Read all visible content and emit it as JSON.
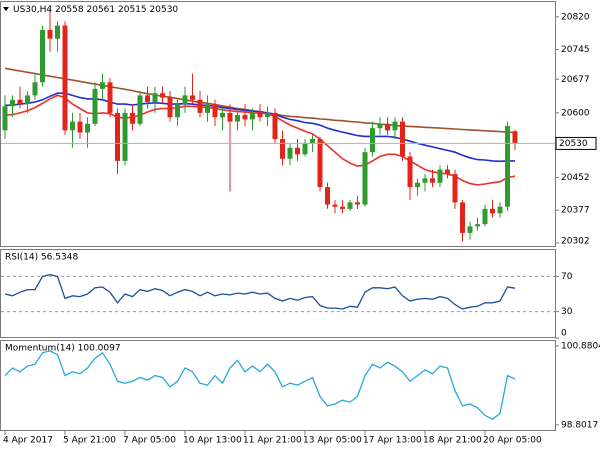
{
  "chart_data": [
    {
      "type": "candlestick",
      "title": "US30,H4",
      "categories": [
        "4 Apr 2017",
        null,
        null,
        null,
        null,
        null,
        null,
        null,
        "5 Apr 21:00",
        null,
        null,
        null,
        null,
        null,
        null,
        null,
        "7 Apr 05:00",
        null,
        null,
        null,
        null,
        null,
        null,
        null,
        "10 Apr 13:00",
        null,
        null,
        null,
        null,
        null,
        null,
        null,
        "11 Apr 21:00",
        null,
        null,
        null,
        null,
        null,
        null,
        null,
        "13 Apr 05:00",
        null,
        null,
        null,
        null,
        null,
        null,
        null,
        "17 Apr 13:00",
        null,
        null,
        null,
        null,
        null,
        null,
        null,
        "18 Apr 21:00",
        null,
        null,
        null,
        null,
        null,
        null,
        null,
        "20 Apr 05:00",
        null,
        null,
        null,
        null
      ],
      "open": [
        20560,
        20615,
        20630,
        20620,
        20640,
        20670,
        20790,
        20770,
        20800,
        20560,
        20580,
        20555,
        20575,
        20655,
        20670,
        20600,
        20490,
        20600,
        20575,
        20640,
        20625,
        20645,
        20635,
        20590,
        20620,
        20640,
        20630,
        20600,
        20620,
        20590,
        20600,
        20580,
        20595,
        20585,
        20600,
        20590,
        20600,
        20540,
        20495,
        20520,
        20505,
        20530,
        20540,
        20430,
        20390,
        20385,
        20380,
        20395,
        20390,
        20510,
        20565,
        20575,
        20560,
        20580,
        20500,
        20430,
        20440,
        20450,
        20440,
        20470,
        20460,
        20395,
        20325,
        20340,
        20345,
        20380,
        20370,
        20385,
        20558
      ],
      "high": [
        20640,
        20640,
        20660,
        20650,
        20690,
        20800,
        20840,
        20810,
        20810,
        20600,
        20600,
        20590,
        20670,
        20690,
        20680,
        20610,
        20610,
        20620,
        20650,
        20660,
        20660,
        20660,
        20650,
        20630,
        20660,
        20690,
        20650,
        20640,
        20630,
        20610,
        20620,
        20610,
        20620,
        20610,
        20620,
        20615,
        20610,
        20560,
        20530,
        20540,
        20540,
        20550,
        20545,
        20440,
        20400,
        20400,
        20400,
        20410,
        20520,
        20580,
        20590,
        20590,
        20590,
        20590,
        20510,
        20450,
        20460,
        20470,
        20480,
        20480,
        20470,
        20400,
        20350,
        20360,
        20390,
        20400,
        20395,
        20580,
        20561
      ],
      "low": [
        20540,
        20590,
        20610,
        20600,
        20630,
        20660,
        20740,
        20740,
        20550,
        20520,
        20540,
        20520,
        20570,
        20630,
        20590,
        20460,
        20480,
        20560,
        20570,
        20610,
        20600,
        20620,
        20580,
        20570,
        20600,
        20620,
        20590,
        20580,
        20570,
        20560,
        20420,
        20560,
        20570,
        20560,
        20580,
        20570,
        20530,
        20480,
        20480,
        20490,
        20500,
        20510,
        20420,
        20380,
        20370,
        20370,
        20375,
        20380,
        20385,
        20500,
        20550,
        20550,
        20540,
        20490,
        20400,
        20410,
        20420,
        20430,
        20430,
        20450,
        20380,
        20305,
        20310,
        20330,
        20340,
        20360,
        20360,
        20375,
        20515
      ],
      "close": [
        20615,
        20630,
        20620,
        20640,
        20670,
        20790,
        20770,
        20800,
        20560,
        20580,
        20555,
        20575,
        20655,
        20670,
        20600,
        20490,
        20600,
        20575,
        20640,
        20625,
        20645,
        20635,
        20590,
        20620,
        20640,
        20630,
        20600,
        20620,
        20590,
        20600,
        20580,
        20595,
        20585,
        20600,
        20590,
        20600,
        20540,
        20495,
        20520,
        20505,
        20530,
        20540,
        20430,
        20390,
        20385,
        20380,
        20395,
        20390,
        20510,
        20565,
        20575,
        20560,
        20580,
        20500,
        20430,
        20440,
        20450,
        20440,
        20470,
        20460,
        20395,
        20325,
        20340,
        20345,
        20380,
        20370,
        20385,
        20570,
        20530
      ],
      "up_color": "#2f9a2f",
      "down_color": "#e3241b",
      "series": [
        {
          "color": "#a0522d",
          "values": [
            20702,
            20699,
            20696,
            20693,
            20690,
            20687,
            20684,
            20681,
            20678,
            20675,
            20672,
            20669,
            20666,
            20663,
            20660,
            20657,
            20654,
            20651,
            20647,
            20644,
            20641,
            20638,
            20636,
            20633,
            20630,
            20627,
            20624,
            20622,
            20619,
            20616,
            20613,
            20610,
            20608,
            20605,
            20602,
            20599,
            20597,
            20594,
            20592,
            20591,
            20589,
            20588,
            20586,
            20585,
            20583,
            20582,
            20580,
            20579,
            20577,
            20576,
            20574,
            20573,
            20571,
            20570,
            20569,
            20568,
            20567,
            20566,
            20565,
            20564,
            20563,
            20562,
            20561,
            20560,
            20559,
            20558,
            20557,
            20556,
            20555
          ]
        },
        {
          "color": "#1f2fd0",
          "values": [
            20617,
            20618,
            20620,
            20622,
            20625,
            20630,
            20638,
            20645,
            20645,
            20640,
            20635,
            20632,
            20632,
            20630,
            20625,
            20620,
            20620,
            20618,
            20620,
            20622,
            20623,
            20622,
            20620,
            20620,
            20621,
            20620,
            20618,
            20617,
            20615,
            20612,
            20610,
            20608,
            20606,
            20604,
            20603,
            20600,
            20597,
            20590,
            20585,
            20582,
            20578,
            20576,
            20572,
            20565,
            20560,
            20556,
            20552,
            20548,
            20546,
            20546,
            20546,
            20546,
            20544,
            20540,
            20535,
            20530,
            20526,
            20522,
            20518,
            20514,
            20510,
            20503,
            20497,
            20493,
            20492,
            20490,
            20489,
            20490,
            20490
          ]
        },
        {
          "color": "#e8322a",
          "values": [
            20594,
            20596,
            20600,
            20605,
            20612,
            20622,
            20632,
            20640,
            20635,
            20620,
            20610,
            20600,
            20598,
            20600,
            20598,
            20590,
            20588,
            20590,
            20595,
            20602,
            20608,
            20610,
            20610,
            20612,
            20615,
            20615,
            20614,
            20612,
            20610,
            20607,
            20605,
            20603,
            20602,
            20600,
            20600,
            20598,
            20592,
            20582,
            20572,
            20565,
            20558,
            20552,
            20540,
            20525,
            20510,
            20495,
            20485,
            20478,
            20480,
            20490,
            20500,
            20505,
            20505,
            20500,
            20490,
            20480,
            20470,
            20465,
            20462,
            20460,
            20455,
            20445,
            20438,
            20435,
            20437,
            20440,
            20442,
            20452,
            20455
          ]
        }
      ],
      "ylim": [
        20295,
        20854
      ],
      "yticks": [
        20820,
        20745,
        20677,
        20600,
        20452,
        20377,
        20302
      ]
    },
    {
      "type": "line",
      "title": "RSI(14) 56.5348",
      "series": [
        {
          "color": "#1f4e9a",
          "values": [
            50,
            48,
            52,
            55,
            55,
            70,
            72,
            70,
            45,
            48,
            47,
            50,
            57,
            58,
            52,
            40,
            50,
            47,
            55,
            53,
            56,
            54,
            48,
            52,
            55,
            53,
            48,
            52,
            48,
            50,
            49,
            51,
            50,
            52,
            50,
            51,
            45,
            42,
            45,
            43,
            46,
            47,
            37,
            34,
            34,
            33,
            36,
            35,
            52,
            57,
            57,
            56,
            58,
            48,
            42,
            44,
            45,
            44,
            47,
            45,
            38,
            33,
            35,
            36,
            40,
            40,
            42,
            58,
            56.5348
          ]
        }
      ],
      "levels": [
        70,
        30
      ],
      "ylim": [
        0,
        100
      ],
      "yticks": [
        70,
        30,
        0
      ]
    },
    {
      "type": "line",
      "title": "Momentum(14) 100.0097",
      "series": [
        {
          "color": "#29a8dc",
          "values": [
            100.1,
            100.3,
            100.2,
            100.35,
            100.4,
            100.7,
            100.75,
            100.65,
            100.1,
            100.2,
            100.15,
            100.3,
            100.55,
            100.7,
            100.4,
            99.95,
            99.9,
            99.95,
            100.05,
            99.98,
            100.1,
            100.05,
            99.8,
            99.95,
            100.3,
            100.2,
            99.9,
            99.85,
            100.1,
            99.9,
            100.3,
            100.5,
            100.2,
            100.35,
            100.2,
            100.4,
            100.2,
            99.8,
            99.9,
            99.85,
            99.95,
            100.05,
            99.55,
            99.3,
            99.35,
            99.45,
            99.4,
            99.55,
            100.1,
            100.4,
            100.3,
            100.45,
            100.35,
            100.2,
            99.95,
            100.1,
            100.25,
            100.15,
            100.35,
            100.3,
            99.7,
            99.3,
            99.35,
            99.25,
            99.05,
            98.95,
            99.1,
            100.1,
            100.0097
          ]
        }
      ],
      "ylim": [
        98.64,
        101.01
      ],
      "yticks": [
        100.8804,
        98.8017
      ]
    }
  ]
}
